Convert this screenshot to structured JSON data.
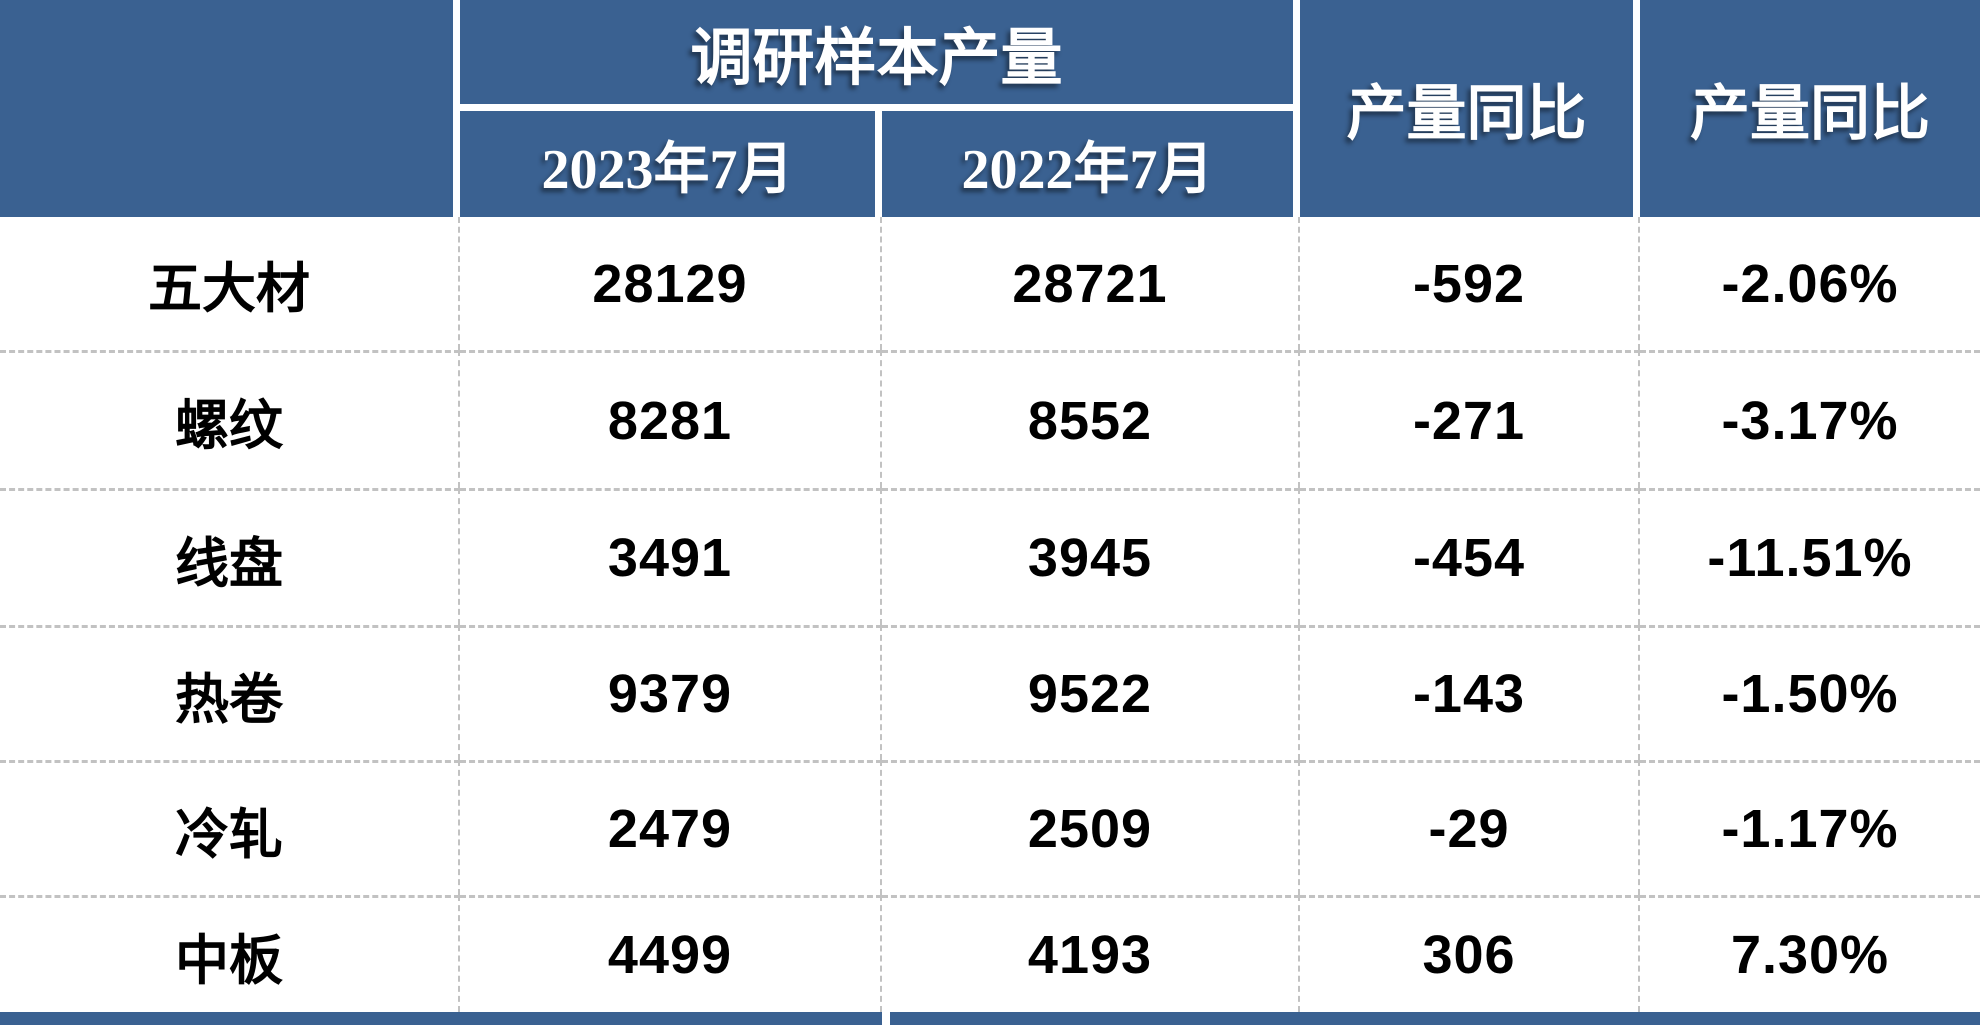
{
  "colors": {
    "header_bg": "#3A6191",
    "header_text": "#FFFFFF",
    "body_text": "#000000",
    "dash_gray": "#C2C2C2",
    "row_bg": "#FFFFFF"
  },
  "table": {
    "corner_label": "",
    "group_title": "调研样本产量",
    "col_2023": "2023年7月",
    "col_2022": "2022年7月",
    "yoy_abs_header": "产量同比",
    "yoy_pct_header": "产量同比",
    "rows": [
      [
        "五大材",
        "28129",
        "28721",
        "-592",
        "-2.06%"
      ],
      [
        "螺纹",
        "8281",
        "8552",
        "-271",
        "-3.17%"
      ],
      [
        "线盘",
        "3491",
        "3945",
        "-454",
        "-11.51%"
      ],
      [
        "热卷",
        "9379",
        "9522",
        "-143",
        "-1.50%"
      ],
      [
        "冷轧",
        "2479",
        "2509",
        "-29",
        "-1.17%"
      ],
      [
        "中板",
        "4499",
        "4193",
        "306",
        "7.30%"
      ]
    ]
  },
  "chart_data": {
    "type": "table",
    "title": "",
    "column_group": {
      "label": "调研样本产量",
      "over_columns": [
        "2023年7月",
        "2022年7月"
      ]
    },
    "columns": [
      "",
      "2023年7月",
      "2022年7月",
      "产量同比",
      "产量同比"
    ],
    "rows": [
      {
        "name": "五大材",
        "v2023": 28129,
        "v2022": 28721,
        "yoy_abs": -592,
        "yoy_pct": "-2.06%"
      },
      {
        "name": "螺纹",
        "v2023": 8281,
        "v2022": 8552,
        "yoy_abs": -271,
        "yoy_pct": "-3.17%"
      },
      {
        "name": "线盘",
        "v2023": 3491,
        "v2022": 3945,
        "yoy_abs": -454,
        "yoy_pct": "-11.51%"
      },
      {
        "name": "热卷",
        "v2023": 9379,
        "v2022": 9522,
        "yoy_abs": -143,
        "yoy_pct": "-1.50%"
      },
      {
        "name": "冷轧",
        "v2023": 2479,
        "v2022": 2509,
        "yoy_abs": -29,
        "yoy_pct": "-1.17%"
      },
      {
        "name": "中板",
        "v2023": 4499,
        "v2022": 4193,
        "yoy_abs": 306,
        "yoy_pct": "7.30%"
      }
    ],
    "notes": "截图底部可见下一段蓝色表头条带（被裁切）"
  }
}
